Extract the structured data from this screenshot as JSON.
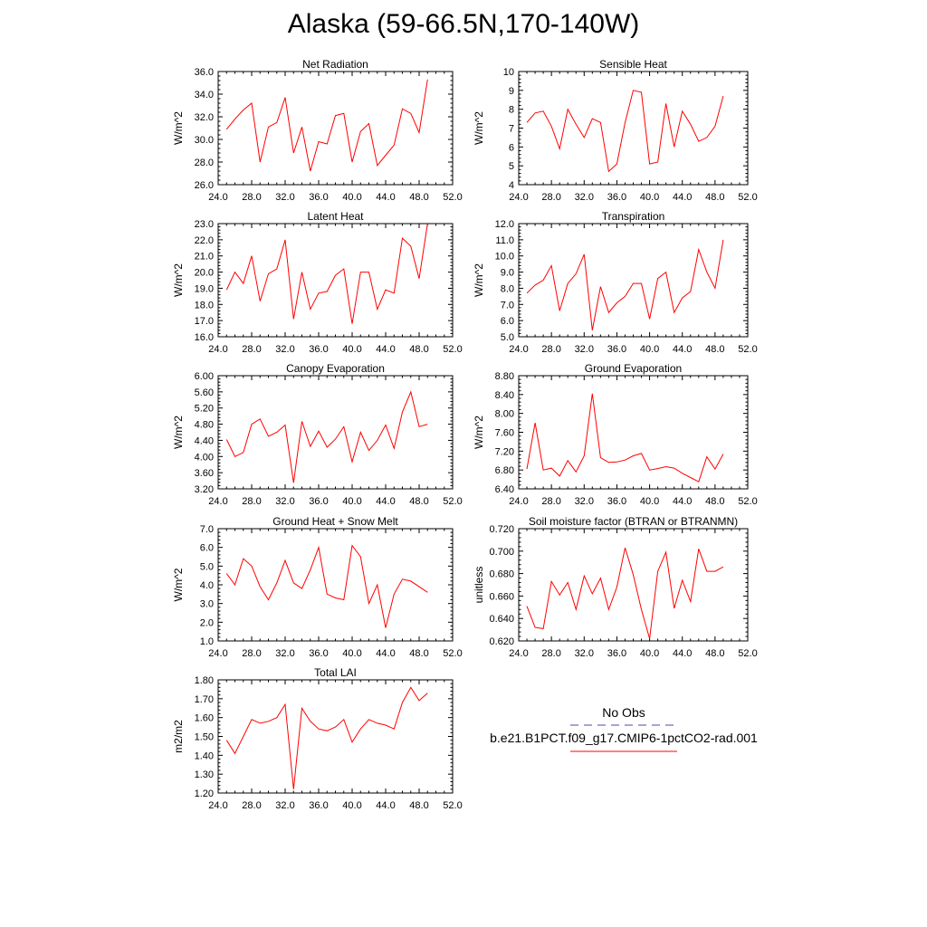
{
  "title": "Alaska (59-66.5N,170-140W)",
  "colors": {
    "series": "#ff0000",
    "obs": "#4a4ab0",
    "axis": "#000000"
  },
  "legend": {
    "obs_label": "No Obs",
    "model_label": "b.e21.B1PCT.f09_g17.CMIP6-1pctCO2-rad.001"
  },
  "chart_data": [
    {
      "type": "line",
      "title": "Net Radiation",
      "ylabel": "W/m^2",
      "xlim": [
        24,
        52
      ],
      "ylim": [
        26,
        36
      ],
      "xticks": [
        "24.0",
        "28.0",
        "32.0",
        "36.0",
        "40.0",
        "44.0",
        "48.0",
        "52.0"
      ],
      "yticks": [
        "26.0",
        "28.0",
        "30.0",
        "32.0",
        "34.0",
        "36.0"
      ],
      "series": [
        {
          "x": [
            25,
            26,
            27,
            28,
            29,
            30,
            31,
            32,
            33,
            34,
            35,
            36,
            37,
            38,
            39,
            40,
            41,
            42,
            43,
            44,
            45,
            46,
            47,
            48,
            49
          ],
          "values": [
            30.9,
            31.8,
            32.6,
            33.2,
            28.0,
            31.1,
            31.5,
            33.7,
            28.8,
            31.1,
            27.2,
            29.8,
            29.6,
            32.1,
            32.3,
            28.0,
            30.7,
            31.4,
            27.7,
            28.6,
            29.5,
            32.7,
            32.3,
            30.6,
            35.3
          ]
        }
      ]
    },
    {
      "type": "line",
      "title": "Sensible Heat",
      "ylabel": "W/m^2",
      "xlim": [
        24,
        52
      ],
      "ylim": [
        4,
        10
      ],
      "xticks": [
        "24.0",
        "28.0",
        "32.0",
        "36.0",
        "40.0",
        "44.0",
        "48.0",
        "52.0"
      ],
      "yticks": [
        "4",
        "5",
        "6",
        "7",
        "8",
        "9",
        "10"
      ],
      "series": [
        {
          "x": [
            25,
            26,
            27,
            28,
            29,
            30,
            31,
            32,
            33,
            34,
            35,
            36,
            37,
            38,
            39,
            40,
            41,
            42,
            43,
            44,
            45,
            46,
            47,
            48,
            49
          ],
          "values": [
            7.3,
            7.8,
            7.9,
            7.1,
            5.9,
            8.0,
            7.2,
            6.5,
            7.5,
            7.3,
            4.7,
            5.1,
            7.3,
            9.0,
            8.9,
            5.1,
            5.2,
            8.3,
            6.0,
            7.9,
            7.2,
            6.3,
            6.5,
            7.1,
            8.7
          ]
        }
      ]
    },
    {
      "type": "line",
      "title": "Latent Heat",
      "ylabel": "W/m^2",
      "xlim": [
        24,
        52
      ],
      "ylim": [
        16,
        23
      ],
      "xticks": [
        "24.0",
        "28.0",
        "32.0",
        "36.0",
        "40.0",
        "44.0",
        "48.0",
        "52.0"
      ],
      "yticks": [
        "16.0",
        "17.0",
        "18.0",
        "19.0",
        "20.0",
        "21.0",
        "22.0",
        "23.0"
      ],
      "series": [
        {
          "x": [
            25,
            26,
            27,
            28,
            29,
            30,
            31,
            32,
            33,
            34,
            35,
            36,
            37,
            38,
            39,
            40,
            41,
            42,
            43,
            44,
            45,
            46,
            47,
            48,
            49
          ],
          "values": [
            18.9,
            20.0,
            19.3,
            21.0,
            18.2,
            19.9,
            20.2,
            22.0,
            17.1,
            20.0,
            17.7,
            18.7,
            18.8,
            19.8,
            20.2,
            16.8,
            20.0,
            20.0,
            17.7,
            18.9,
            18.7,
            22.1,
            21.6,
            19.6,
            23.0
          ]
        }
      ]
    },
    {
      "type": "line",
      "title": "Transpiration",
      "ylabel": "W/m^2",
      "xlim": [
        24,
        52
      ],
      "ylim": [
        5,
        12
      ],
      "xticks": [
        "24.0",
        "28.0",
        "32.0",
        "36.0",
        "40.0",
        "44.0",
        "48.0",
        "52.0"
      ],
      "yticks": [
        "5.0",
        "6.0",
        "7.0",
        "8.0",
        "9.0",
        "10.0",
        "11.0",
        "12.0"
      ],
      "series": [
        {
          "x": [
            25,
            26,
            27,
            28,
            29,
            30,
            31,
            32,
            33,
            34,
            35,
            36,
            37,
            38,
            39,
            40,
            41,
            42,
            43,
            44,
            45,
            46,
            47,
            48,
            49
          ],
          "values": [
            7.7,
            8.2,
            8.5,
            9.4,
            6.6,
            8.3,
            8.9,
            10.1,
            5.4,
            8.1,
            6.5,
            7.1,
            7.5,
            8.3,
            8.3,
            6.1,
            8.6,
            9.0,
            6.5,
            7.4,
            7.8,
            10.4,
            9.0,
            8.0,
            11.0
          ]
        }
      ]
    },
    {
      "type": "line",
      "title": "Canopy Evaporation",
      "ylabel": "W/m^2",
      "xlim": [
        24,
        52
      ],
      "ylim": [
        3.2,
        6.0
      ],
      "xticks": [
        "24.0",
        "28.0",
        "32.0",
        "36.0",
        "40.0",
        "44.0",
        "48.0",
        "52.0"
      ],
      "yticks": [
        "3.20",
        "3.60",
        "4.00",
        "4.40",
        "4.80",
        "5.20",
        "5.60",
        "6.00"
      ],
      "series": [
        {
          "x": [
            25,
            26,
            27,
            28,
            29,
            30,
            31,
            32,
            33,
            34,
            35,
            36,
            37,
            38,
            39,
            40,
            41,
            42,
            43,
            44,
            45,
            46,
            47,
            48,
            49
          ],
          "values": [
            4.42,
            4.0,
            4.1,
            4.8,
            4.93,
            4.5,
            4.6,
            4.78,
            3.35,
            4.87,
            4.25,
            4.63,
            4.23,
            4.43,
            4.74,
            3.87,
            4.6,
            4.15,
            4.4,
            4.78,
            4.2,
            5.1,
            5.6,
            4.74,
            4.8
          ]
        }
      ]
    },
    {
      "type": "line",
      "title": "Ground Evaporation",
      "ylabel": "W/m^2",
      "xlim": [
        24,
        52
      ],
      "ylim": [
        6.4,
        8.8
      ],
      "xticks": [
        "24.0",
        "28.0",
        "32.0",
        "36.0",
        "40.0",
        "44.0",
        "48.0",
        "52.0"
      ],
      "yticks": [
        "6.40",
        "6.80",
        "7.20",
        "7.60",
        "8.00",
        "8.40",
        "8.80"
      ],
      "series": [
        {
          "x": [
            25,
            26,
            27,
            28,
            29,
            30,
            31,
            32,
            33,
            34,
            35,
            36,
            37,
            38,
            39,
            40,
            41,
            42,
            43,
            44,
            45,
            46,
            47,
            48,
            49
          ],
          "values": [
            6.82,
            7.8,
            6.8,
            6.84,
            6.67,
            7.0,
            6.76,
            7.1,
            8.42,
            7.06,
            6.96,
            6.97,
            7.01,
            7.1,
            7.15,
            6.8,
            6.83,
            6.87,
            6.84,
            6.73,
            6.64,
            6.55,
            7.08,
            6.82,
            7.14
          ]
        }
      ]
    },
    {
      "type": "line",
      "title": "Ground Heat + Snow Melt",
      "ylabel": "W/m^2",
      "xlim": [
        24,
        52
      ],
      "ylim": [
        1,
        7
      ],
      "xticks": [
        "24.0",
        "28.0",
        "32.0",
        "36.0",
        "40.0",
        "44.0",
        "48.0",
        "52.0"
      ],
      "yticks": [
        "1.0",
        "2.0",
        "3.0",
        "4.0",
        "5.0",
        "6.0",
        "7.0"
      ],
      "series": [
        {
          "x": [
            25,
            26,
            27,
            28,
            29,
            30,
            31,
            32,
            33,
            34,
            35,
            36,
            37,
            38,
            39,
            40,
            41,
            42,
            43,
            44,
            45,
            46,
            47,
            48,
            49
          ],
          "values": [
            4.6,
            4.0,
            5.4,
            5.0,
            3.9,
            3.2,
            4.1,
            5.3,
            4.1,
            3.8,
            4.8,
            6.0,
            3.5,
            3.3,
            3.2,
            6.1,
            5.5,
            3.0,
            4.0,
            1.7,
            3.5,
            4.3,
            4.2,
            3.9,
            3.6
          ]
        }
      ]
    },
    {
      "type": "line",
      "title": "Soil moisture factor (BTRAN or BTRANMN)",
      "ylabel": "unitless",
      "xlim": [
        24,
        52
      ],
      "ylim": [
        0.62,
        0.72
      ],
      "xticks": [
        "24.0",
        "28.0",
        "32.0",
        "36.0",
        "40.0",
        "44.0",
        "48.0",
        "52.0"
      ],
      "yticks": [
        "0.620",
        "0.640",
        "0.660",
        "0.680",
        "0.700",
        "0.720"
      ],
      "series": [
        {
          "x": [
            25,
            26,
            27,
            28,
            29,
            30,
            31,
            32,
            33,
            34,
            35,
            36,
            37,
            38,
            39,
            40,
            41,
            42,
            43,
            44,
            45,
            46,
            47,
            48,
            49
          ],
          "values": [
            0.651,
            0.632,
            0.631,
            0.673,
            0.661,
            0.672,
            0.648,
            0.678,
            0.662,
            0.676,
            0.648,
            0.668,
            0.703,
            0.679,
            0.648,
            0.622,
            0.682,
            0.699,
            0.649,
            0.674,
            0.655,
            0.702,
            0.682,
            0.682,
            0.686
          ]
        }
      ]
    },
    {
      "type": "line",
      "title": "Total LAI",
      "ylabel": "m2/m2",
      "xlim": [
        24,
        52
      ],
      "ylim": [
        1.2,
        1.8
      ],
      "xticks": [
        "24.0",
        "28.0",
        "32.0",
        "36.0",
        "40.0",
        "44.0",
        "48.0",
        "52.0"
      ],
      "yticks": [
        "1.20",
        "1.30",
        "1.40",
        "1.50",
        "1.60",
        "1.70",
        "1.80"
      ],
      "series": [
        {
          "x": [
            25,
            26,
            27,
            28,
            29,
            30,
            31,
            32,
            33,
            34,
            35,
            36,
            37,
            38,
            39,
            40,
            41,
            42,
            43,
            44,
            45,
            46,
            47,
            48,
            49
          ],
          "values": [
            1.48,
            1.41,
            1.5,
            1.59,
            1.57,
            1.58,
            1.6,
            1.67,
            1.22,
            1.65,
            1.58,
            1.54,
            1.53,
            1.55,
            1.59,
            1.47,
            1.54,
            1.59,
            1.57,
            1.56,
            1.54,
            1.68,
            1.76,
            1.69,
            1.73
          ]
        }
      ]
    }
  ]
}
